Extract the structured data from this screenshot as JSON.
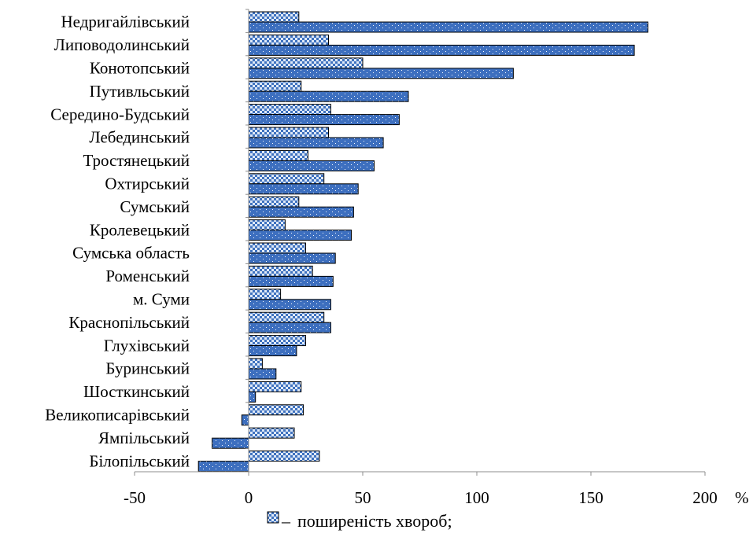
{
  "chart_data": {
    "type": "bar",
    "orientation": "horizontal",
    "categories": [
      "Недригайлівський",
      "Липоводолинський",
      "Конотопський",
      "Путивльський",
      "Середино-Будський",
      "Лебединський",
      "Тростянецький",
      "Охтирський",
      "Сумський",
      "Кролевецький",
      "Сумська область",
      "Роменський",
      "м. Суми",
      "Краснопільський",
      "Глухівський",
      "Буринський",
      "Шосткинський",
      "Великописарівський",
      "Ямпільський",
      "Білопільський"
    ],
    "series": [
      {
        "name": "поширеність хвороб;",
        "pattern": "checker",
        "colors": {
          "light": "#dfe9f7",
          "dark": "#3f72bf"
        },
        "values": [
          22,
          35,
          50,
          23,
          36,
          35,
          26,
          33,
          22,
          16,
          25,
          28,
          14,
          33,
          25,
          6,
          23,
          24,
          20,
          31
        ]
      },
      {
        "name": "",
        "pattern": "dotted",
        "colors": {
          "fill": "#3d6fbf",
          "dot": "#ffffff"
        },
        "values": [
          175,
          169,
          116,
          70,
          66,
          59,
          55,
          48,
          46,
          45,
          38,
          37,
          36,
          36,
          21,
          12,
          3,
          -3,
          -16,
          -22
        ]
      }
    ],
    "xlim": [
      -50,
      200
    ],
    "xticks": [
      -50,
      0,
      50,
      100,
      150,
      200
    ],
    "x_unit": "%",
    "grid": false,
    "legend_position": "bottom"
  },
  "legend": {
    "marker_separator": "–",
    "label": "поширеність хвороб;"
  },
  "axis": {
    "unit_label": "%"
  }
}
